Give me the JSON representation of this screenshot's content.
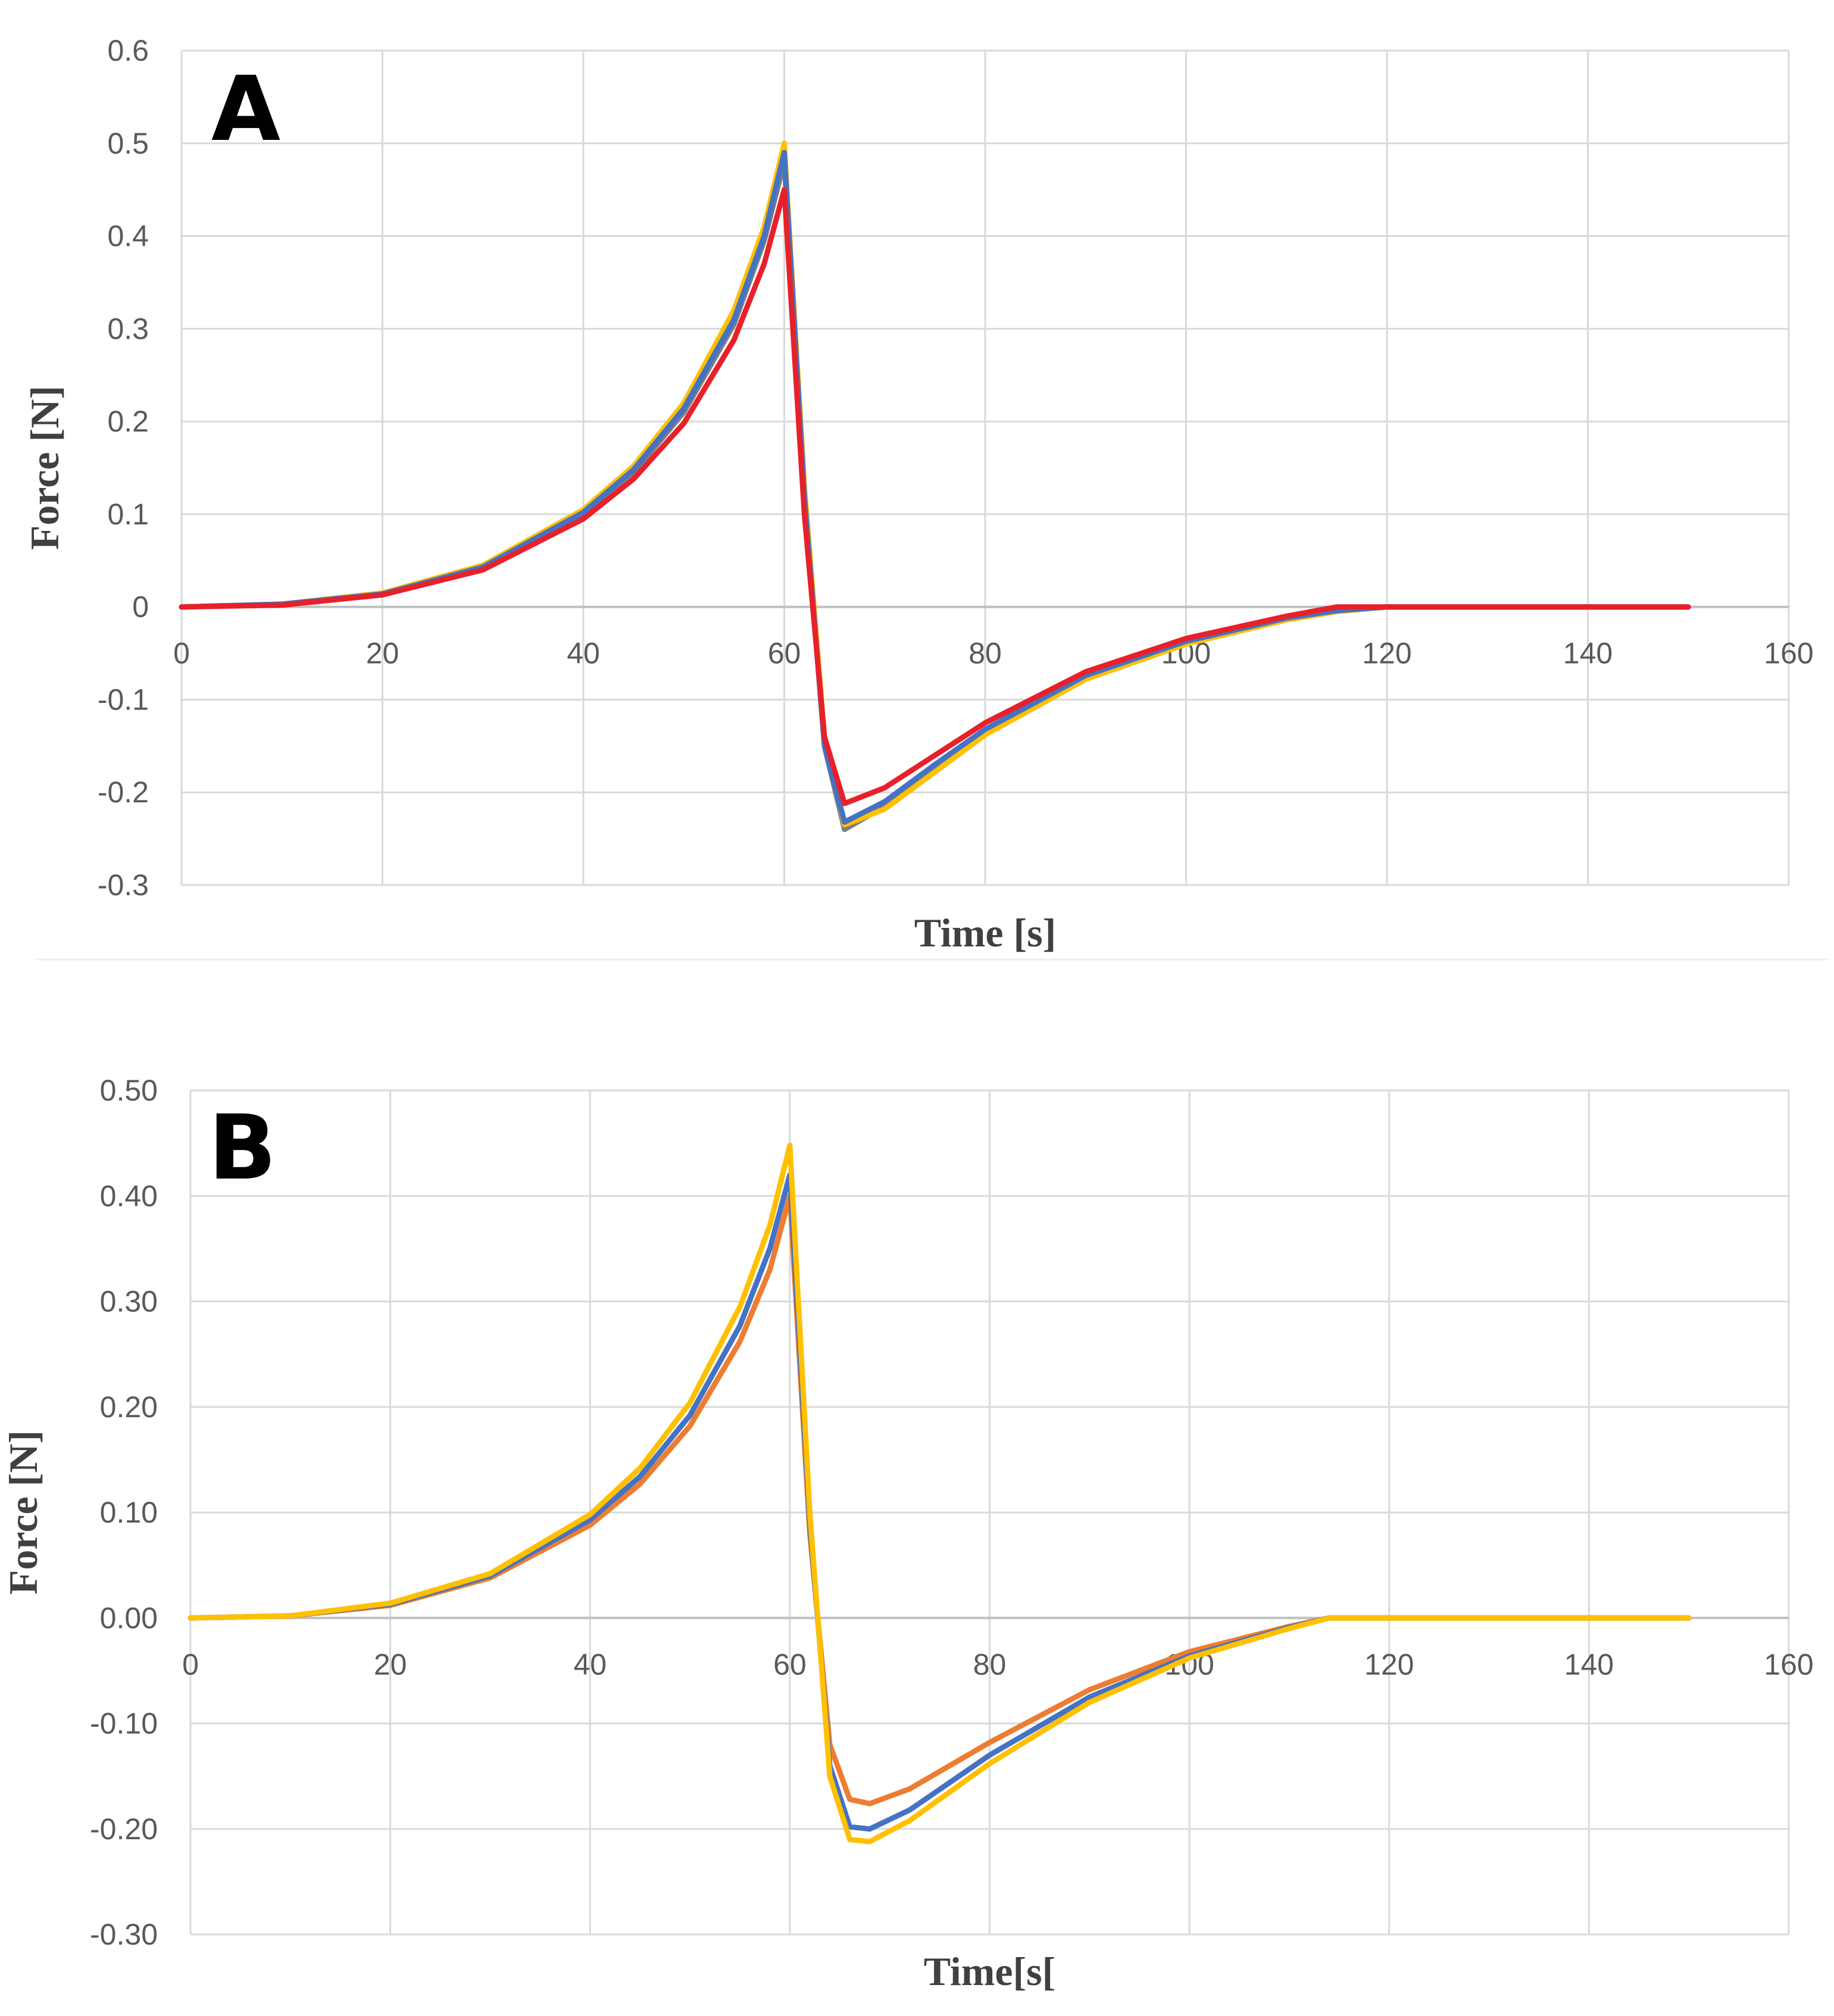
{
  "chart_data": [
    {
      "type": "line",
      "panel_label": "A",
      "xlabel": "Time [s]",
      "ylabel": "Force [N]",
      "xlim": [
        0,
        160
      ],
      "ylim": [
        -0.3,
        0.6
      ],
      "x_ticks": [
        0,
        20,
        40,
        60,
        80,
        100,
        120,
        140,
        160
      ],
      "x_tick_labels": [
        "0",
        "20",
        "40",
        "60",
        "80",
        "100",
        "120",
        "140",
        "160"
      ],
      "y_ticks": [
        -0.3,
        -0.2,
        -0.1,
        0,
        0.1,
        0.2,
        0.3,
        0.4,
        0.5,
        0.6
      ],
      "y_tick_labels": [
        "-0.3",
        "-0.2",
        "-0.1",
        "0",
        "0.1",
        "0.2",
        "0.3",
        "0.4",
        "0.5",
        "0.6"
      ],
      "grid": true,
      "series": [
        {
          "name": "gray",
          "color": "#7f7f7f",
          "x": [
            0,
            10,
            20,
            30,
            40,
            45,
            50,
            55,
            58,
            60,
            62,
            64,
            66,
            70,
            75,
            80,
            90,
            100,
            110,
            115,
            120,
            130,
            140,
            150
          ],
          "values": [
            0,
            0.003,
            0.014,
            0.042,
            0.1,
            0.145,
            0.21,
            0.305,
            0.395,
            0.48,
            0.12,
            -0.15,
            -0.24,
            -0.215,
            -0.175,
            -0.135,
            -0.075,
            -0.038,
            -0.012,
            -0.004,
            0,
            0,
            0,
            0
          ]
        },
        {
          "name": "yellow",
          "color": "#ffc000",
          "x": [
            0,
            10,
            20,
            30,
            40,
            45,
            50,
            55,
            58,
            60,
            62,
            64,
            66,
            70,
            75,
            80,
            90,
            100,
            110,
            115,
            120,
            130,
            140,
            150
          ],
          "values": [
            0,
            0.003,
            0.015,
            0.045,
            0.105,
            0.152,
            0.22,
            0.32,
            0.41,
            0.5,
            0.13,
            -0.14,
            -0.235,
            -0.218,
            -0.178,
            -0.138,
            -0.078,
            -0.04,
            -0.014,
            -0.005,
            0,
            0,
            0,
            0
          ]
        },
        {
          "name": "blue",
          "color": "#4472c4",
          "x": [
            0,
            10,
            20,
            30,
            40,
            45,
            50,
            55,
            58,
            60,
            62,
            64,
            66,
            70,
            75,
            80,
            90,
            100,
            110,
            115,
            120,
            130,
            140,
            150
          ],
          "values": [
            0,
            0.003,
            0.014,
            0.043,
            0.102,
            0.148,
            0.214,
            0.31,
            0.4,
            0.49,
            0.12,
            -0.15,
            -0.232,
            -0.21,
            -0.17,
            -0.132,
            -0.074,
            -0.037,
            -0.012,
            -0.004,
            0,
            0,
            0,
            0
          ]
        },
        {
          "name": "red",
          "color": "#e8202a",
          "x": [
            0,
            10,
            20,
            30,
            40,
            45,
            50,
            55,
            58,
            60,
            62,
            64,
            66,
            70,
            75,
            80,
            90,
            100,
            110,
            115,
            120,
            130,
            140,
            150
          ],
          "values": [
            0,
            0.002,
            0.013,
            0.04,
            0.095,
            0.138,
            0.198,
            0.288,
            0.37,
            0.45,
            0.1,
            -0.14,
            -0.212,
            -0.195,
            -0.16,
            -0.125,
            -0.07,
            -0.034,
            -0.01,
            0,
            0,
            0,
            0,
            0
          ]
        }
      ]
    },
    {
      "type": "line",
      "panel_label": "B",
      "xlabel": "Time[s[",
      "ylabel": "Force [N]",
      "xlim": [
        0,
        160
      ],
      "ylim": [
        -0.3,
        0.5
      ],
      "x_ticks": [
        0,
        20,
        40,
        60,
        80,
        100,
        120,
        140,
        160
      ],
      "x_tick_labels": [
        "0",
        "20",
        "40",
        "60",
        "80",
        "100",
        "120",
        "140",
        "160"
      ],
      "y_ticks": [
        -0.3,
        -0.2,
        -0.1,
        0,
        0.1,
        0.2,
        0.3,
        0.4,
        0.5
      ],
      "y_tick_labels": [
        "-0.30",
        "-0.20",
        "-0.10",
        "0.00",
        "0.10",
        "0.20",
        "0.30",
        "0.40",
        "0.50"
      ],
      "grid": true,
      "series": [
        {
          "name": "orange",
          "color": "#ed7d31",
          "x": [
            0,
            10,
            20,
            30,
            40,
            45,
            50,
            55,
            58,
            60,
            62,
            64,
            66,
            68,
            72,
            80,
            90,
            100,
            110,
            114,
            120,
            130,
            140,
            150
          ],
          "values": [
            0,
            0.002,
            0.012,
            0.038,
            0.088,
            0.127,
            0.182,
            0.262,
            0.33,
            0.4,
            0.08,
            -0.12,
            -0.172,
            -0.176,
            -0.162,
            -0.118,
            -0.068,
            -0.032,
            -0.008,
            0,
            0,
            0,
            0,
            0
          ]
        },
        {
          "name": "blue",
          "color": "#4472c4",
          "x": [
            0,
            10,
            20,
            30,
            40,
            45,
            50,
            55,
            58,
            60,
            62,
            64,
            66,
            68,
            72,
            80,
            90,
            100,
            110,
            114,
            120,
            130,
            140,
            150
          ],
          "values": [
            0,
            0.002,
            0.013,
            0.04,
            0.093,
            0.134,
            0.192,
            0.277,
            0.35,
            0.42,
            0.09,
            -0.14,
            -0.198,
            -0.2,
            -0.182,
            -0.13,
            -0.075,
            -0.036,
            -0.009,
            0,
            0,
            0,
            0,
            0
          ]
        },
        {
          "name": "yellow",
          "color": "#ffc000",
          "x": [
            0,
            10,
            20,
            30,
            40,
            45,
            50,
            55,
            58,
            60,
            62,
            64,
            66,
            68,
            72,
            80,
            90,
            100,
            110,
            114,
            120,
            130,
            140,
            150
          ],
          "values": [
            0,
            0.002,
            0.014,
            0.042,
            0.098,
            0.142,
            0.204,
            0.295,
            0.372,
            0.448,
            0.1,
            -0.15,
            -0.21,
            -0.212,
            -0.192,
            -0.138,
            -0.08,
            -0.038,
            -0.01,
            0,
            0,
            0,
            0,
            0
          ]
        }
      ]
    }
  ]
}
